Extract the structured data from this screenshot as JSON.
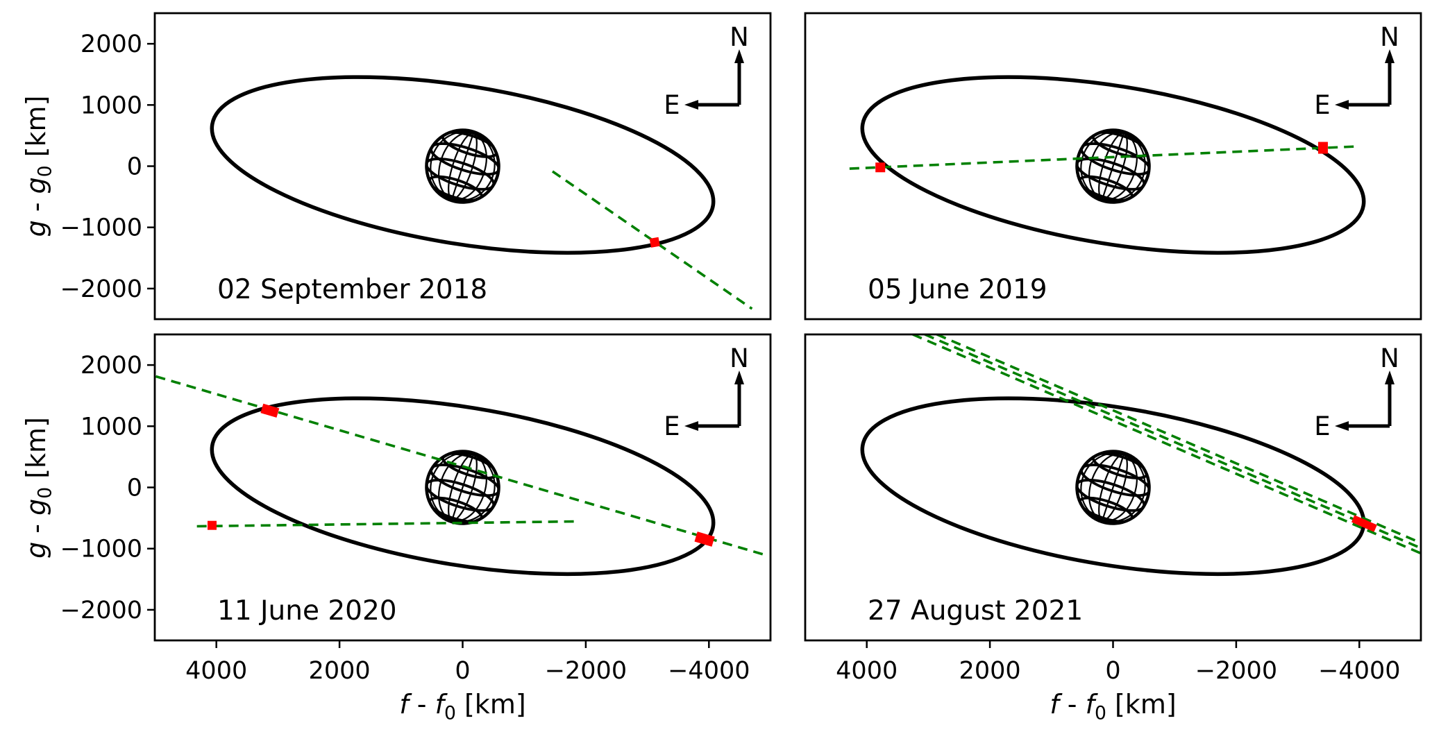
{
  "chart_data": {
    "type": "line",
    "title": "",
    "description": "Four-panel sky-plane occultation geometry figure: black orbit ellipse around a wireframe globe, green dashed occultation chords, red detection markers, N/E compass in each panel.",
    "xlabel": {
      "text": "f - f0 [km]",
      "var": "f",
      "sub": "0",
      "sep": " - ",
      "unit": " [km]"
    },
    "ylabel": {
      "text": "g - g0 [km]",
      "var": "g",
      "sub": "0",
      "sep": " - ",
      "unit": " [km]"
    },
    "xlim": [
      5000,
      -5000
    ],
    "ylim": [
      -2500,
      2500
    ],
    "xticks": [
      4000,
      2000,
      0,
      -2000,
      -4000
    ],
    "xtick_labels": [
      "4000",
      "2000",
      "0",
      "−2000",
      "−4000"
    ],
    "yticks": [
      2000,
      1000,
      0,
      -1000,
      -2000
    ],
    "ytick_labels": [
      "2000",
      "1000",
      "0",
      "−1000",
      "−2000"
    ],
    "grid": false,
    "legend": null,
    "compass": {
      "north": "N",
      "east": "E"
    },
    "colors": {
      "orbit": "#000000",
      "chord": "#008000",
      "detection": "#ff0000",
      "frame": "#000000",
      "background": "#ffffff"
    },
    "orbit_ellipse_km": {
      "cx": 0,
      "cy": 20,
      "semi_major": 4120,
      "semi_minor": 1290,
      "rotation_deg": 9.2
    },
    "globe_km": {
      "cx": 0,
      "cy": 0,
      "radius": 590
    },
    "panels": [
      {
        "date": "02 September 2018",
        "chords_km": [
          {
            "x1": -1460,
            "y1": -85,
            "x2": -4700,
            "y2": -2330
          }
        ],
        "detections_km": [
          {
            "x": -3120,
            "y": -1245,
            "w": 13,
            "h": 13,
            "angle": 80
          }
        ]
      },
      {
        "date": "05 June 2019",
        "chords_km": [
          {
            "x1": 4280,
            "y1": -40,
            "x2": -3970,
            "y2": 323
          }
        ],
        "detections_km": [
          {
            "x": 3780,
            "y": -20,
            "w": 14,
            "h": 14,
            "angle": 0
          },
          {
            "x": -3410,
            "y": 300,
            "w": 14,
            "h": 17,
            "angle": 0
          }
        ]
      },
      {
        "date": "11 June 2020",
        "chords_km": [
          {
            "x1": 4983,
            "y1": 1814,
            "x2": -4970,
            "y2": -1120
          },
          {
            "x1": 4316,
            "y1": -635,
            "x2": -1900,
            "y2": -555
          }
        ],
        "detections_km": [
          {
            "x": 3130,
            "y": 1255,
            "w": 24,
            "h": 14,
            "angle": 16.4
          },
          {
            "x": 4070,
            "y": -620,
            "w": 13,
            "h": 13,
            "angle": 0
          },
          {
            "x": -3930,
            "y": -845,
            "w": 26,
            "h": 15,
            "angle": 16.4
          }
        ]
      },
      {
        "date": "27 August 2021",
        "chords_km": [
          {
            "x1": 3253,
            "y1": 2500,
            "x2": -5000,
            "y2": -1077
          },
          {
            "x1": 3057,
            "y1": 2500,
            "x2": -5000,
            "y2": -992
          },
          {
            "x1": 2861,
            "y1": 2500,
            "x2": -5000,
            "y2": -907
          }
        ],
        "detections_km": [
          {
            "x": -4000,
            "y": -555,
            "w": 20,
            "h": 11,
            "angle": 23.4
          },
          {
            "x": -4160,
            "y": -625,
            "w": 20,
            "h": 11,
            "angle": 23.4
          }
        ]
      }
    ]
  }
}
